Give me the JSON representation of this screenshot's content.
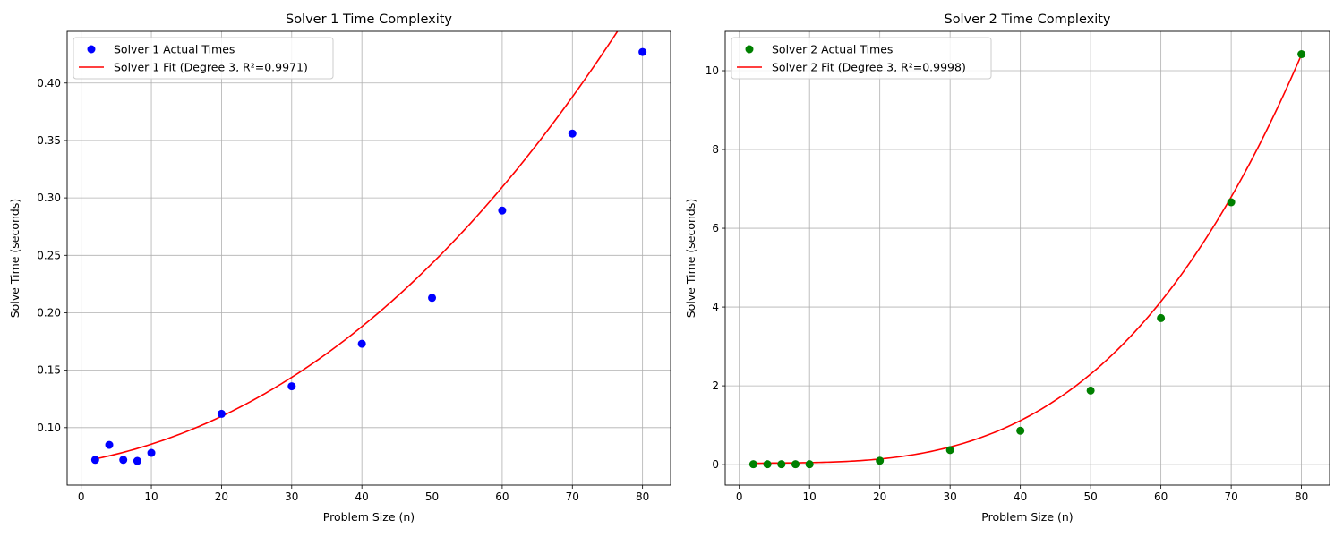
{
  "chart_data": [
    {
      "type": "scatter",
      "title": "Solver 1 Time Complexity",
      "xlabel": "Problem Size (n)",
      "ylabel": "Solve Time (seconds)",
      "xlim": [
        -2,
        84
      ],
      "ylim": [
        0.05,
        0.445
      ],
      "xticks": [
        0,
        10,
        20,
        30,
        40,
        50,
        60,
        70,
        80
      ],
      "xtick_labels": [
        "0",
        "10",
        "20",
        "30",
        "40",
        "50",
        "60",
        "70",
        "80"
      ],
      "yticks": [
        0.1,
        0.15,
        0.2,
        0.25,
        0.3,
        0.35,
        0.4
      ],
      "ytick_labels": [
        "0.10",
        "0.15",
        "0.20",
        "0.25",
        "0.30",
        "0.35",
        "0.40"
      ],
      "grid": true,
      "legend_position": "top-left",
      "series": [
        {
          "name": "Solver 1 Actual Times",
          "kind": "scatter",
          "color": "#0000ff",
          "x": [
            2,
            4,
            6,
            8,
            10,
            20,
            30,
            40,
            50,
            60,
            70,
            80
          ],
          "y": [
            0.072,
            0.085,
            0.072,
            0.071,
            0.078,
            0.112,
            0.136,
            0.173,
            0.213,
            0.289,
            0.356,
            0.427
          ]
        },
        {
          "name": "Solver 1 Fit (Degree 3, R²=0.9971)",
          "kind": "line",
          "color": "#ff0000",
          "coefficients": [
            0.07042,
            0.001088,
            4.225e-05,
            1e-07
          ]
        }
      ]
    },
    {
      "type": "scatter",
      "title": "Solver 2 Time Complexity",
      "xlabel": "Problem Size (n)",
      "ylabel": "Solve Time (seconds)",
      "xlim": [
        -2,
        84
      ],
      "ylim": [
        -0.52,
        11.0
      ],
      "xticks": [
        0,
        10,
        20,
        30,
        40,
        50,
        60,
        70,
        80
      ],
      "xtick_labels": [
        "0",
        "10",
        "20",
        "30",
        "40",
        "50",
        "60",
        "70",
        "80"
      ],
      "yticks": [
        0,
        2,
        4,
        6,
        8,
        10
      ],
      "ytick_labels": [
        "0",
        "2",
        "4",
        "6",
        "8",
        "10"
      ],
      "grid": true,
      "legend_position": "top-left",
      "series": [
        {
          "name": "Solver 2 Actual Times",
          "kind": "scatter",
          "color": "#008000",
          "x": [
            2,
            4,
            6,
            8,
            10,
            20,
            30,
            40,
            50,
            60,
            70,
            80
          ],
          "y": [
            0.01,
            0.01,
            0.01,
            0.01,
            0.01,
            0.1,
            0.37,
            0.86,
            1.88,
            3.72,
            6.66,
            10.42
          ]
        },
        {
          "name": "Solver 2 Fit (Degree 3, R²=0.9998)",
          "kind": "line",
          "color": "#ff0000",
          "coefficients": [
            0.0273,
            0.00405,
            -0.000412,
            2.479e-05
          ]
        }
      ]
    }
  ]
}
